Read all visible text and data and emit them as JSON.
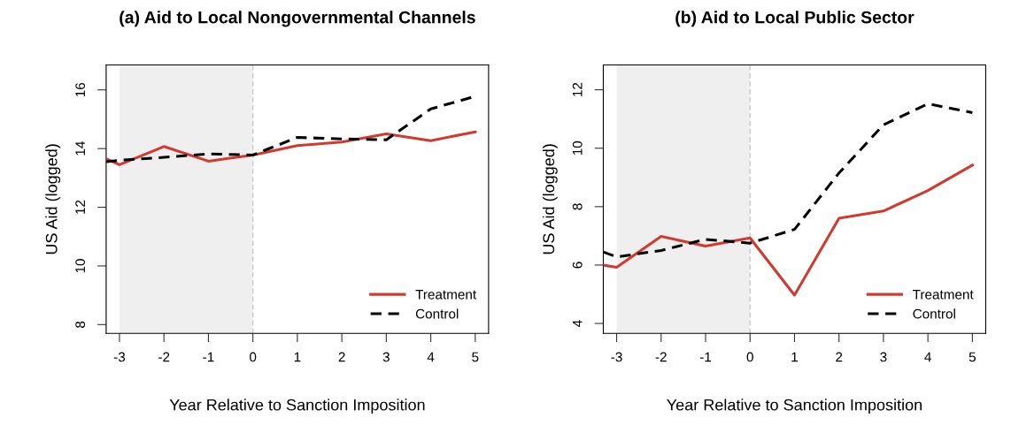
{
  "chart_data": [
    {
      "type": "line",
      "title": "(a) Aid to Local Nongovernmental Channels",
      "xlabel": "Year Relative to Sanction Imposition",
      "ylabel": "US Aid (logged)",
      "x": [
        -3.3,
        -3,
        -2,
        -1,
        0,
        1,
        2,
        3,
        4,
        5
      ],
      "series": [
        {
          "name": "Treatment",
          "color": "#d03a30",
          "line_style": "solid",
          "values": [
            13.65,
            13.45,
            14.07,
            13.57,
            13.78,
            14.1,
            14.22,
            14.5,
            14.27,
            14.57
          ]
        },
        {
          "name": "Control",
          "color": "#000000",
          "line_style": "dashed",
          "values": [
            13.55,
            13.6,
            13.7,
            13.82,
            13.78,
            14.38,
            14.33,
            14.3,
            15.35,
            15.78
          ]
        }
      ],
      "xlim": [
        -3.3,
        5.3
      ],
      "xticks": [
        -3,
        -2,
        -1,
        0,
        1,
        2,
        3,
        4,
        5
      ],
      "ylim": [
        7.7,
        16.85
      ],
      "yticks": [
        8,
        10,
        12,
        14,
        16
      ],
      "bands": [
        {
          "axis": "x",
          "from": -3,
          "to": 0,
          "color": "#efefef"
        }
      ],
      "ref_lines": [
        {
          "axis": "x",
          "value": 0,
          "color": "#c8c8c8",
          "line_style": "dashed"
        }
      ],
      "legend": "bottom right",
      "grid": false
    },
    {
      "type": "line",
      "title": "(b) Aid to Local Public Sector",
      "xlabel": "Year Relative to Sanction Imposition",
      "ylabel": "US Aid (logged)",
      "x": [
        -3.3,
        -3,
        -2,
        -1,
        0,
        1,
        2,
        3,
        4,
        5
      ],
      "series": [
        {
          "name": "Treatment",
          "color": "#d03a30",
          "line_style": "solid",
          "values": [
            6.0,
            5.92,
            6.98,
            6.65,
            6.93,
            4.97,
            7.6,
            7.85,
            8.55,
            9.42
          ]
        },
        {
          "name": "Control",
          "color": "#000000",
          "line_style": "dashed",
          "values": [
            6.45,
            6.28,
            6.5,
            6.88,
            6.75,
            7.22,
            9.15,
            10.8,
            11.52,
            11.22
          ]
        }
      ],
      "xlim": [
        -3.3,
        5.3
      ],
      "xticks": [
        -3,
        -2,
        -1,
        0,
        1,
        2,
        3,
        4,
        5
      ],
      "ylim": [
        3.66,
        12.85
      ],
      "yticks": [
        4,
        6,
        8,
        10,
        12
      ],
      "bands": [
        {
          "axis": "x",
          "from": -3,
          "to": 0,
          "color": "#efefef"
        }
      ],
      "ref_lines": [
        {
          "axis": "x",
          "value": 0,
          "color": "#c8c8c8",
          "line_style": "dashed"
        }
      ],
      "legend": "bottom right",
      "grid": false
    }
  ]
}
